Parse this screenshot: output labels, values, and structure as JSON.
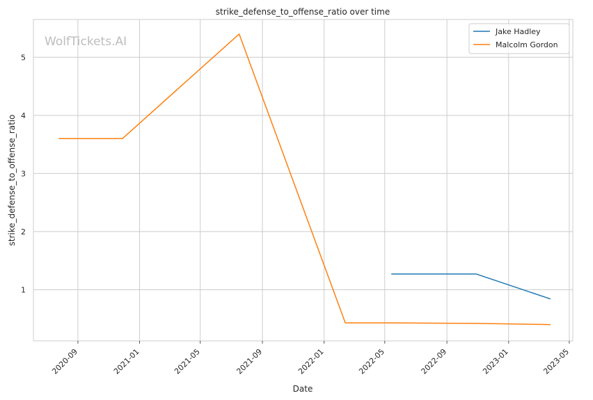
{
  "chart_data": {
    "type": "line",
    "title": "strike_defense_to_offense_ratio over time",
    "xlabel": "Date",
    "ylabel": "strike_defense_to_offense_ratio",
    "watermark": "WolfTickets.AI",
    "x_type": "date",
    "xlim": [
      "2020-06-05",
      "2023-05-08"
    ],
    "ylim": [
      0.12,
      5.65
    ],
    "x_ticks": [
      "2020-09-01",
      "2021-01-01",
      "2021-05-01",
      "2021-09-01",
      "2022-01-01",
      "2022-05-01",
      "2022-09-01",
      "2023-01-01",
      "2023-05-01"
    ],
    "x_tick_labels": [
      "2020-09",
      "2021-01",
      "2021-05",
      "2021-09",
      "2022-01",
      "2022-05",
      "2022-09",
      "2023-01",
      "2023-05"
    ],
    "y_ticks": [
      1,
      2,
      3,
      4,
      5
    ],
    "y_tick_labels": [
      "1",
      "2",
      "3",
      "4",
      "5"
    ],
    "grid": true,
    "legend_position": "top-right",
    "series": [
      {
        "name": "Jake Hadley",
        "color": "#1f77b4",
        "x": [
          "2022-05-14",
          "2022-10-29",
          "2023-03-25"
        ],
        "y": [
          1.27,
          1.27,
          0.84
        ]
      },
      {
        "name": "Malcolm Gordon",
        "color": "#ff7f0e",
        "x": [
          "2020-07-25",
          "2020-11-28",
          "2021-07-17",
          "2022-02-12",
          "2022-05-14",
          "2022-10-29",
          "2023-03-25"
        ],
        "y": [
          3.6,
          3.6,
          5.4,
          0.43,
          0.43,
          0.42,
          0.4
        ]
      }
    ]
  }
}
